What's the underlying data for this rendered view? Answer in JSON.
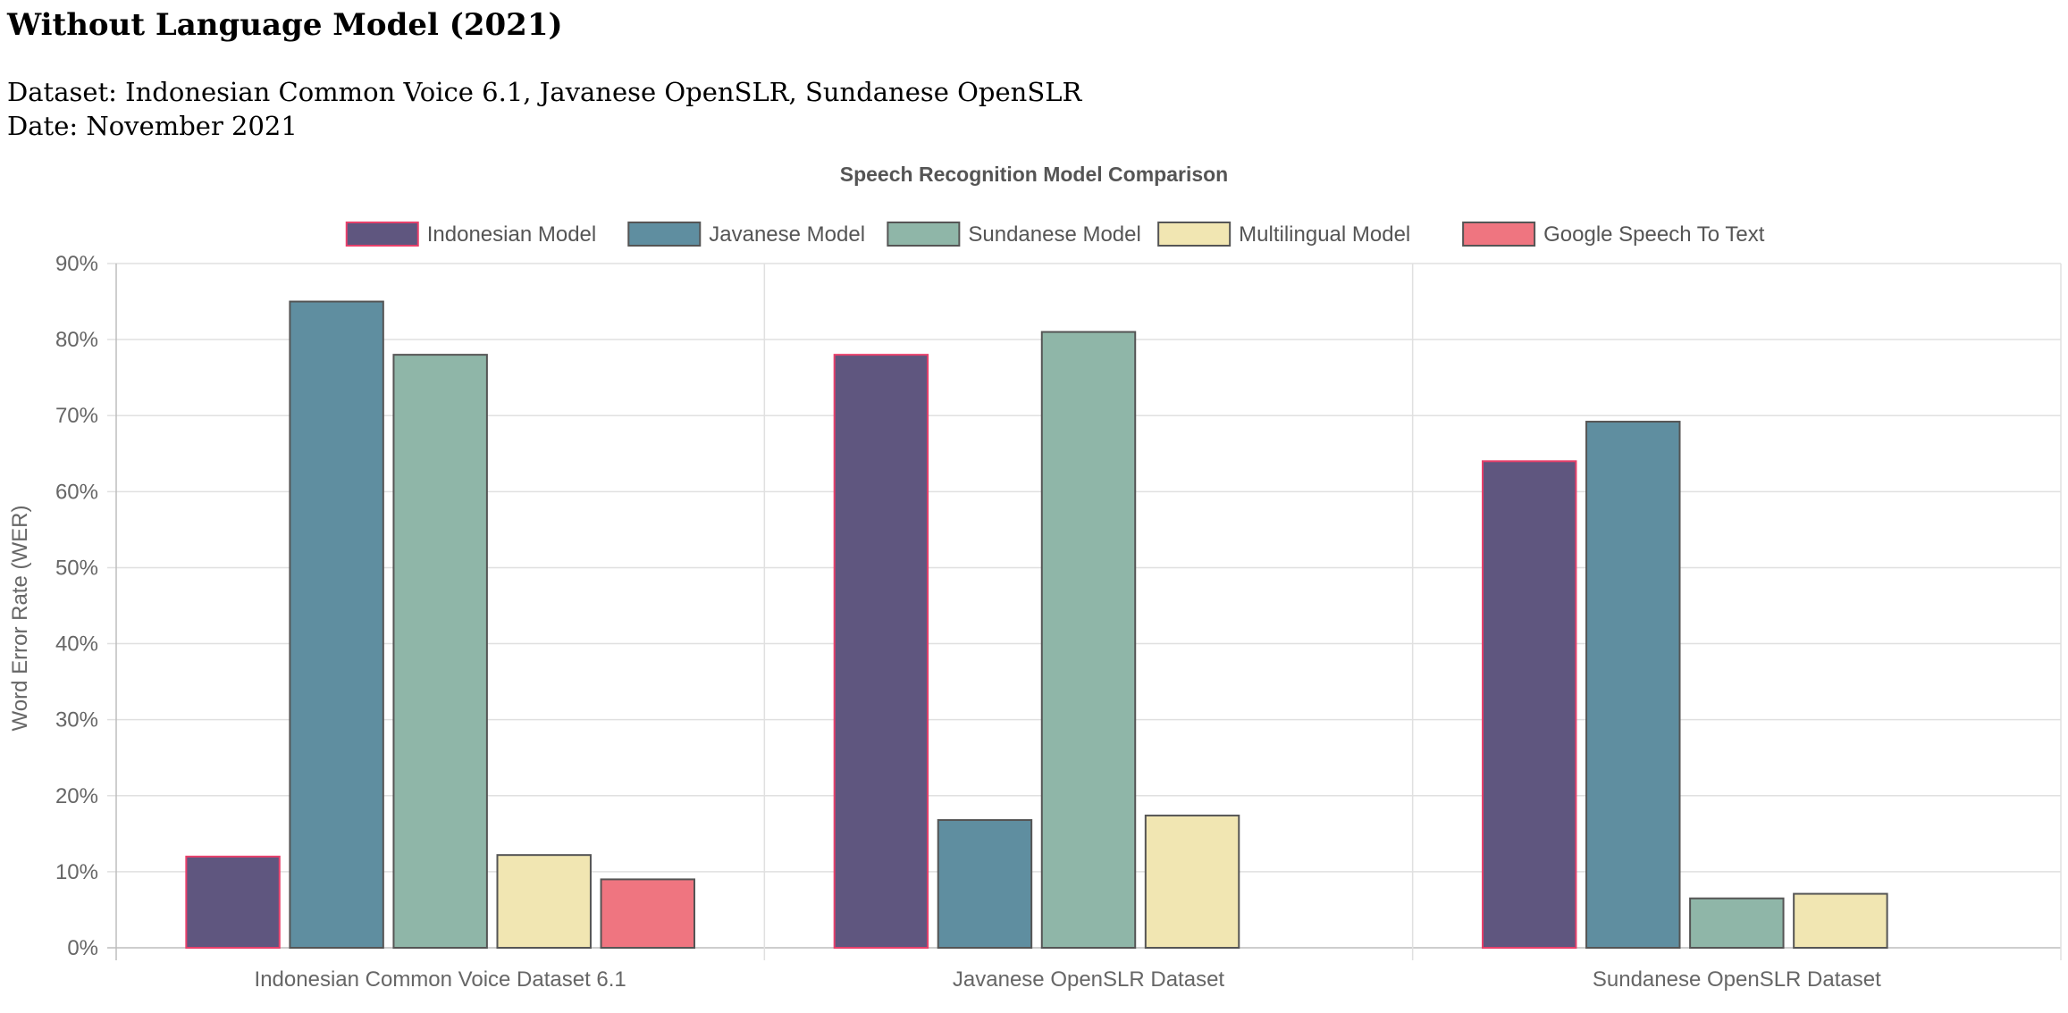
{
  "header": {
    "title": "Without Language Model (2021)",
    "dataset_line": "Dataset: Indonesian Common Voice 6.1, Javanese OpenSLR, Sundanese OpenSLR",
    "date_line": "Date: November 2021"
  },
  "chart_data": {
    "type": "bar",
    "title": "Speech Recognition Model Comparison",
    "xlabel": "",
    "ylabel": "Word Error Rate (WER)",
    "ylim": [
      0,
      90
    ],
    "y_ticks": [
      "0%",
      "10%",
      "20%",
      "30%",
      "40%",
      "50%",
      "60%",
      "70%",
      "80%",
      "90%"
    ],
    "categories": [
      "Indonesian Common Voice Dataset 6.1",
      "Javanese OpenSLR Dataset",
      "Sundanese OpenSLR Dataset"
    ],
    "legend_position": "top",
    "grid": true,
    "series": [
      {
        "name": "Indonesian Model",
        "values": [
          12,
          78,
          64
        ],
        "color": "#5f567f",
        "border": "#e8406b"
      },
      {
        "name": "Javanese Model",
        "values": [
          85,
          16.8,
          69.2
        ],
        "color": "#5f8ea0",
        "border": "#555555"
      },
      {
        "name": "Sundanese Model",
        "values": [
          78,
          81,
          6.5
        ],
        "color": "#8fb6a8",
        "border": "#555555"
      },
      {
        "name": "Multilingual Model",
        "values": [
          12.2,
          17.4,
          7.1
        ],
        "color": "#f1e6b2",
        "border": "#555555"
      },
      {
        "name": "Google Speech To Text",
        "values": [
          9,
          null,
          null
        ],
        "color": "#ef7580",
        "border": "#555555"
      }
    ]
  }
}
